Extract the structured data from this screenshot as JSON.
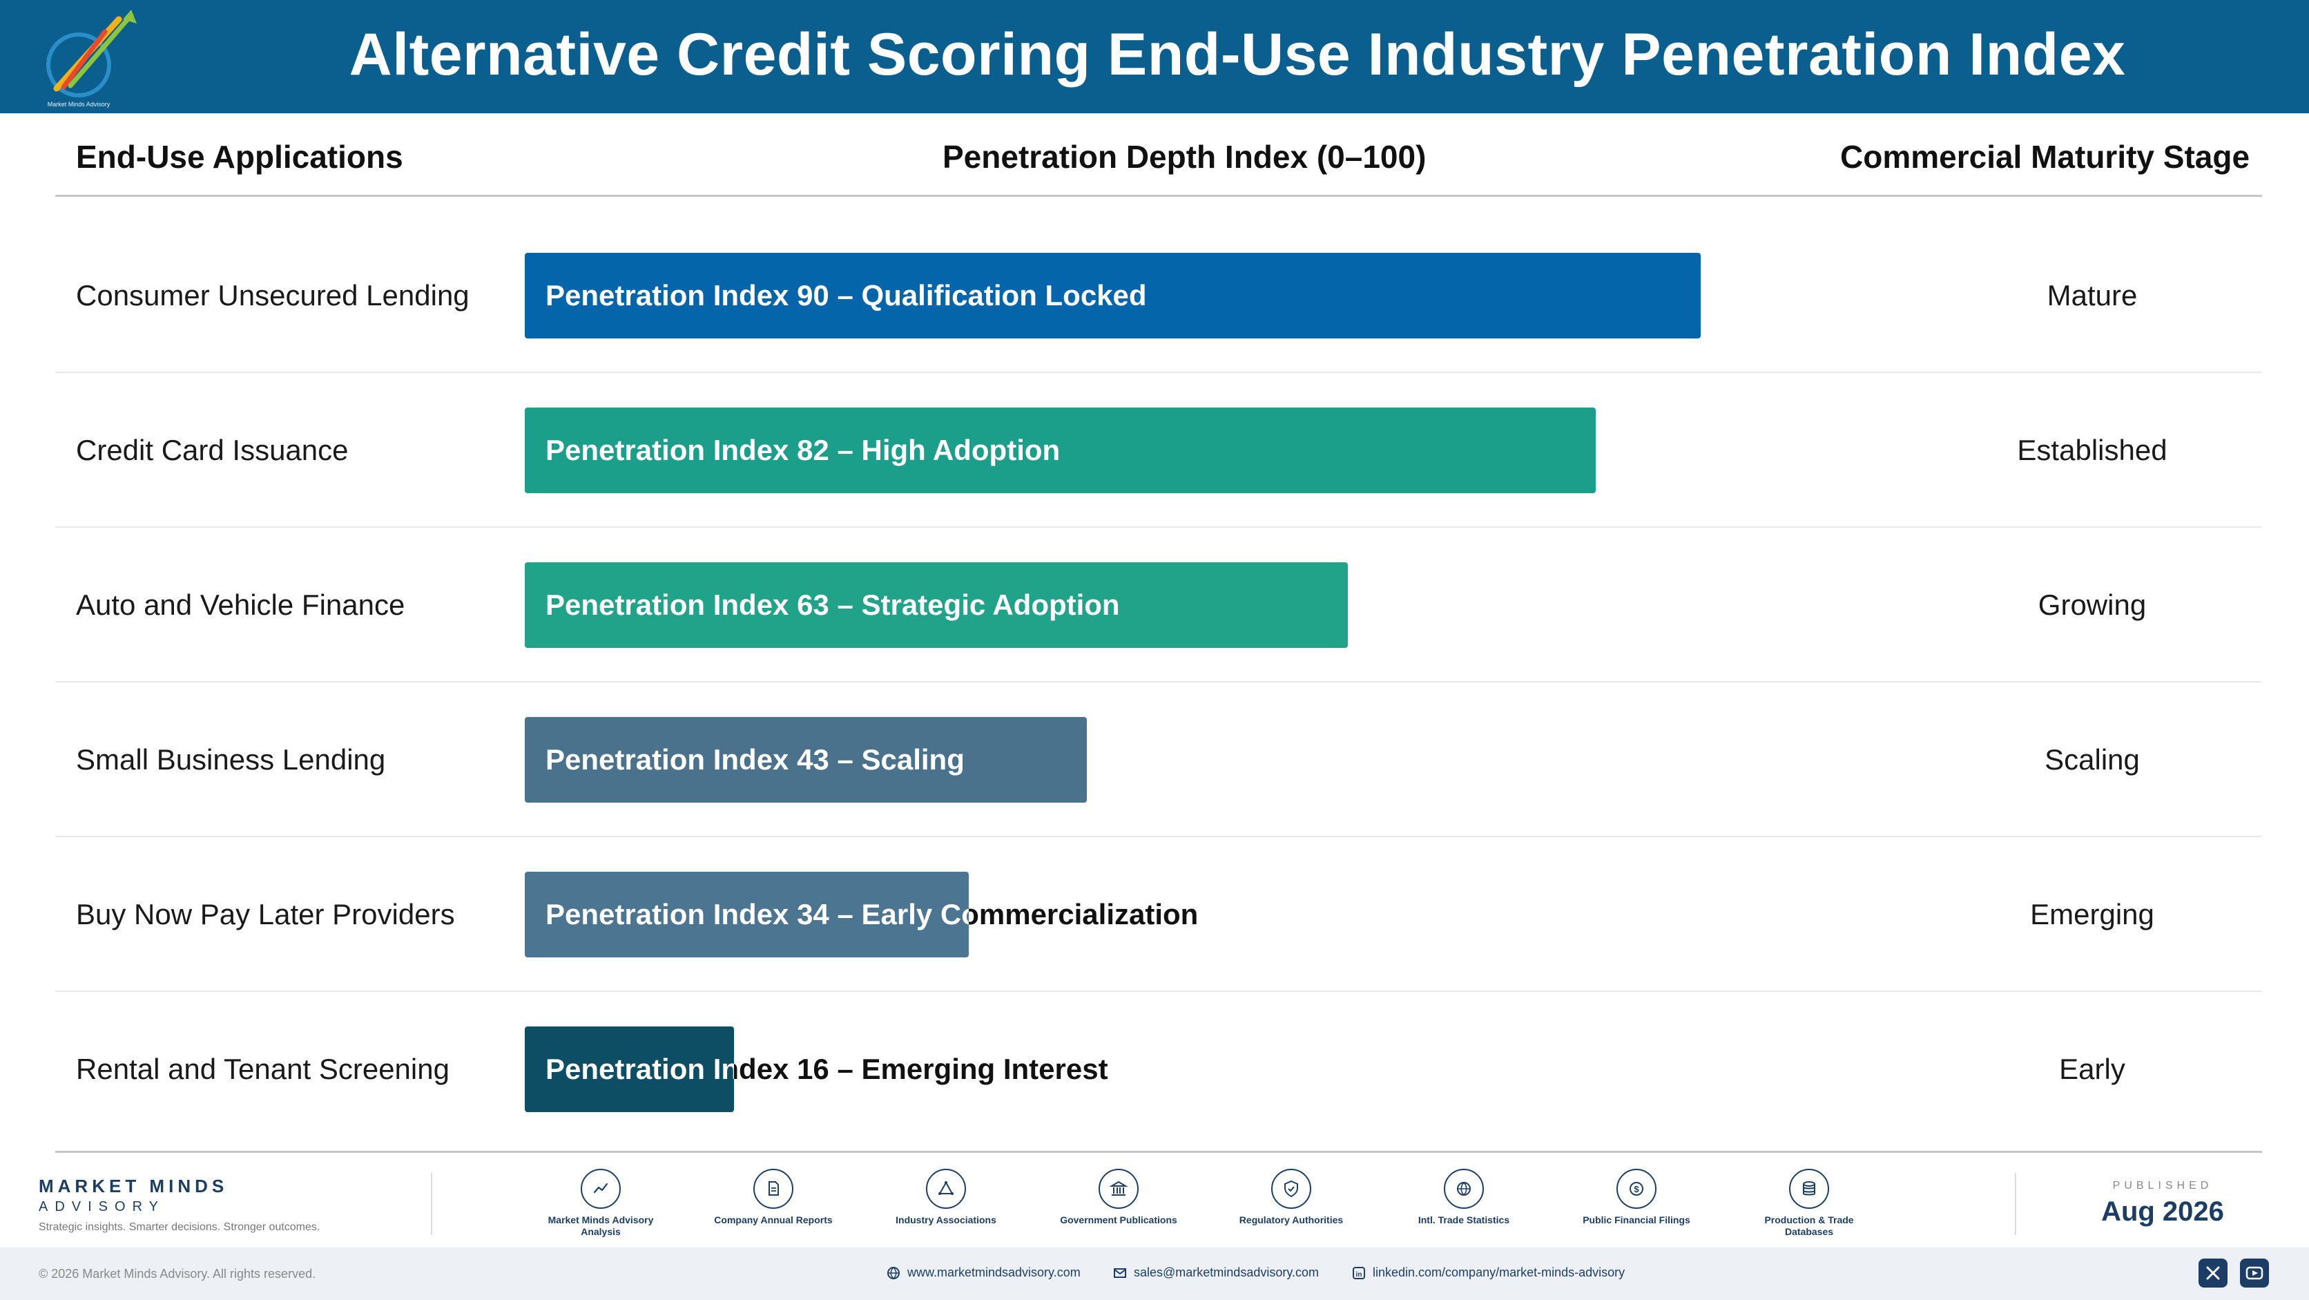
{
  "header": {
    "title": "Alternative Credit Scoring End-Use Industry Penetration Index",
    "logo_icon": "rising-arrows-logo-icon",
    "logo_caption": "Market Minds Advisory"
  },
  "columns": {
    "applications": "End-Use Applications",
    "index": "Penetration Depth Index (0–100)",
    "stage": "Commercial Maturity Stage"
  },
  "chart_data": {
    "type": "bar",
    "orientation": "horizontal",
    "title": "Alternative Credit Scoring End-Use Industry Penetration Index",
    "xlabel": "Penetration Depth Index (0–100)",
    "xlim": [
      0,
      100
    ],
    "grid": false,
    "categories": [
      "Consumer Unsecured Lending",
      "Credit Card Issuance",
      "Auto and Vehicle Finance",
      "Small Business Lending",
      "Buy Now Pay Later Providers",
      "Rental and Tenant Screening"
    ],
    "values": [
      90,
      82,
      63,
      43,
      34,
      16
    ],
    "bar_labels": [
      "Penetration Index 90 – Qualification Locked",
      "Penetration Index 82 – High Adoption",
      "Penetration Index 63 – Strategic Adoption",
      "Penetration Index 43 – Scaling",
      "Penetration Index 34 – Early Commercialization",
      "Penetration Index 16 – Emerging Interest"
    ],
    "stages": [
      "Mature",
      "Established",
      "Growing",
      "Scaling",
      "Emerging",
      "Early"
    ],
    "colors": [
      "#0565ab",
      "#1b9e8a",
      "#20a389",
      "#4a728c",
      "#4b7591",
      "#0d4e64"
    ]
  },
  "footer": {
    "brand_name": "MARKET MINDS",
    "brand_sub": "ADVISORY",
    "tagline": "Strategic insights. Smarter decisions. Stronger outcomes.",
    "sources": [
      {
        "label": "Market Minds Advisory Analysis",
        "icon": "trend-line-icon"
      },
      {
        "label": "Company Annual Reports",
        "icon": "document-icon"
      },
      {
        "label": "Industry Associations",
        "icon": "network-triangle-icon"
      },
      {
        "label": "Government Publications",
        "icon": "government-building-icon"
      },
      {
        "label": "Regulatory Authorities",
        "icon": "shield-check-icon"
      },
      {
        "label": "Intl. Trade Statistics",
        "icon": "globe-icon"
      },
      {
        "label": "Public Financial Filings",
        "icon": "dollar-coin-icon"
      },
      {
        "label": "Production & Trade Databases",
        "icon": "database-icon"
      }
    ],
    "published_label": "PUBLISHED",
    "published_date": "Aug 2026",
    "copyright": "© 2026 Market Minds Advisory. All rights reserved.",
    "website": "www.marketmindsadvisory.com",
    "email": "sales@marketmindsadvisory.com",
    "linkedin": "linkedin.com/company/market-minds-advisory",
    "social": [
      {
        "icon": "x-icon"
      },
      {
        "icon": "youtube-icon"
      }
    ]
  }
}
